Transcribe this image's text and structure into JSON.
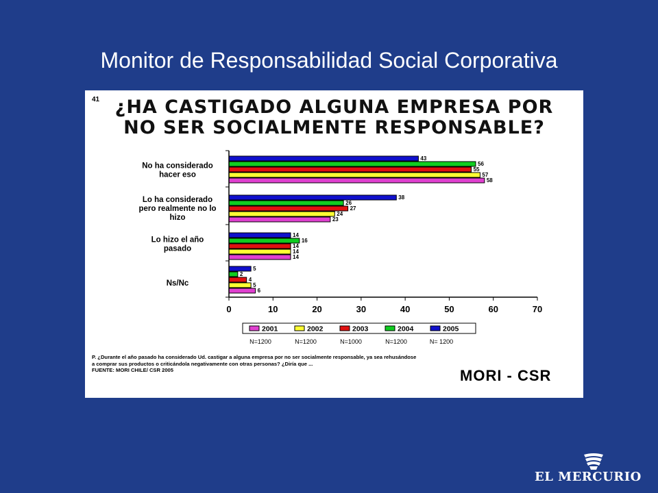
{
  "slide": {
    "title": "Monitor de Responsabilidad Social Corporativa"
  },
  "panel": {
    "page_number": "41",
    "title_line1": "¿HA CASTIGADO ALGUNA EMPRESA POR",
    "title_line2": "NO SER SOCIALMENTE RESPONSABLE?",
    "note_line1": "P. ¿Durante el año pasado ha considerado Ud. castigar a alguna empresa por no ser socialmente responsable, ya sea rehusándose",
    "note_line2": "a comprar sus productos o criticándola negativamente con otras personas? ¿Diría que ...",
    "source": "FUENTE: MORI CHILE/ CSR 2005",
    "logo": "MORI - CSR"
  },
  "footer": {
    "brand": "EL MERCURIO"
  },
  "colors": {
    "2001": "#e040d0",
    "2002": "#ffff33",
    "2003": "#e01010",
    "2004": "#10cc20",
    "2005": "#1010cc",
    "background": "#1f3d8a"
  },
  "chart_data": {
    "type": "bar",
    "orientation": "horizontal",
    "categories": [
      [
        "No ha considerado",
        "hacer eso"
      ],
      [
        "Lo ha considerado",
        "pero realmente no lo",
        "hizo"
      ],
      [
        "Lo hizo el año",
        "pasado"
      ],
      [
        "Ns/Nc"
      ]
    ],
    "series": [
      {
        "name": "2005",
        "values": [
          43,
          38,
          14,
          5
        ]
      },
      {
        "name": "2004",
        "values": [
          56,
          26,
          16,
          2
        ]
      },
      {
        "name": "2003",
        "values": [
          55,
          27,
          14,
          4
        ]
      },
      {
        "name": "2002",
        "values": [
          57,
          24,
          14,
          5
        ]
      },
      {
        "name": "2001",
        "values": [
          58,
          23,
          14,
          6
        ]
      }
    ],
    "value_labels": [
      [
        "43",
        "38",
        "14",
        "5"
      ],
      [
        "56",
        "26",
        "16",
        "2"
      ],
      [
        "55",
        "27",
        "14",
        "4"
      ],
      [
        "57",
        "24",
        "14",
        "5"
      ],
      [
        "58",
        "23",
        "14",
        "6"
      ]
    ],
    "legend_order": [
      "2001",
      "2002",
      "2003",
      "2004",
      "2005"
    ],
    "sample_sizes": [
      "N=1200",
      "N=1200",
      "N=1000",
      "N=1200",
      "N= 1200"
    ],
    "xlim": [
      0,
      70
    ],
    "xticks": [
      0,
      10,
      20,
      30,
      40,
      50,
      60,
      70
    ],
    "grid": false,
    "legend_position": "bottom"
  }
}
